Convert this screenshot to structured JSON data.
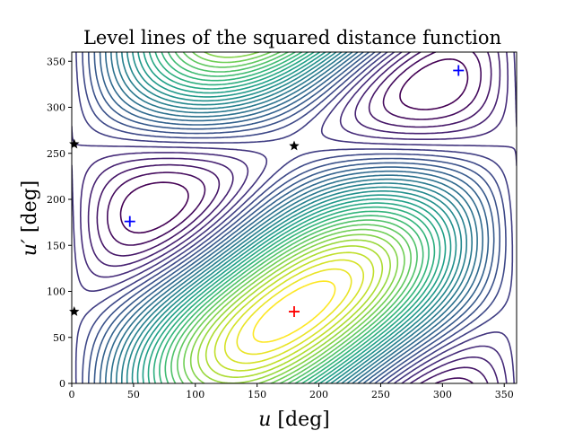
{
  "chart_data": {
    "type": "contour",
    "title": "Level lines of the squared distance function",
    "xlabel_var": "u",
    "xlabel_unit": "[deg]",
    "ylabel_var": "u′",
    "ylabel_unit": "[deg]",
    "xlim": [
      0,
      360
    ],
    "ylim": [
      0,
      360
    ],
    "xticks": [
      "0",
      "50",
      "100",
      "150",
      "200",
      "250",
      "300",
      "350"
    ],
    "yticks": [
      "0",
      "50",
      "100",
      "150",
      "200",
      "250",
      "300",
      "350"
    ],
    "colormap": "viridis",
    "grid": false,
    "markers": [
      {
        "x": 180,
        "y": 78,
        "symbol": "plus",
        "color": "#ff0000"
      },
      {
        "x": 47,
        "y": 176,
        "symbol": "plus",
        "color": "#0000ff"
      },
      {
        "x": 313,
        "y": 340,
        "symbol": "plus",
        "color": "#0000ff"
      },
      {
        "x": 180,
        "y": 258,
        "symbol": "star",
        "color": "#000000"
      },
      {
        "x": 2,
        "y": 260,
        "symbol": "star",
        "color": "#000000"
      },
      {
        "x": 2,
        "y": 78,
        "symbol": "star",
        "color": "#000000"
      }
    ],
    "contour_model": {
      "minimum": [
        180,
        78
      ],
      "maxima": [
        [
          47,
          176
        ],
        [
          313,
          340
        ]
      ],
      "saddles": [
        [
          180,
          258
        ],
        [
          2,
          260
        ],
        [
          2,
          78
        ]
      ]
    }
  }
}
